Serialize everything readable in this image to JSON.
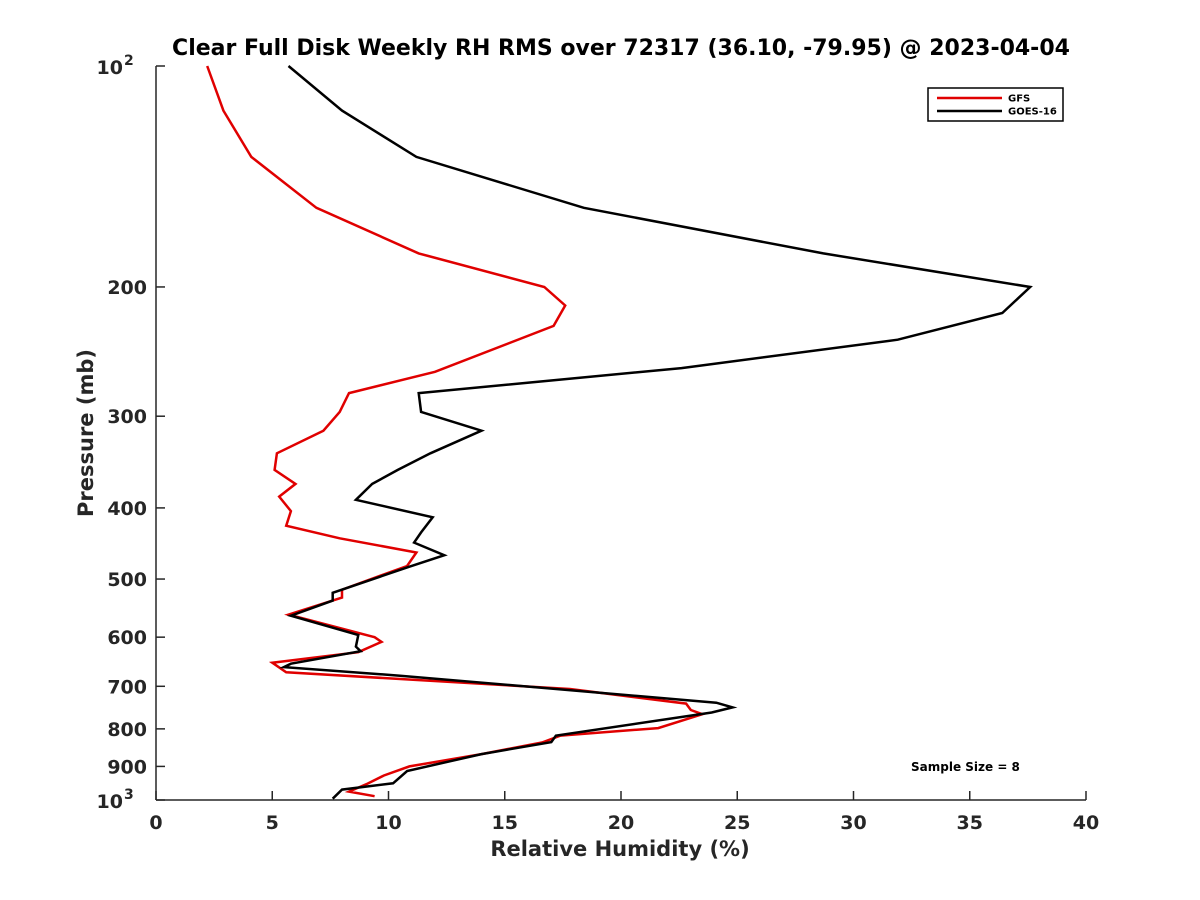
{
  "chart_data": {
    "type": "line",
    "title": "Clear Full Disk Weekly RH RMS over 72317 (36.10, -79.95) @ 2023-04-04",
    "xlabel": "Relative Humidity (%)",
    "ylabel": "Pressure (mb)",
    "xlim": [
      0,
      40
    ],
    "ylim": [
      100,
      1000
    ],
    "y_scale": "log",
    "y_reversed": true,
    "xticks": [
      "0",
      "5",
      "10",
      "15",
      "20",
      "25",
      "30",
      "35",
      "40"
    ],
    "yticks": [
      {
        "value": 100,
        "label": "10",
        "exp": "2"
      },
      {
        "value": 200,
        "label": "200"
      },
      {
        "value": 300,
        "label": "300"
      },
      {
        "value": 400,
        "label": "400"
      },
      {
        "value": 500,
        "label": "500"
      },
      {
        "value": 600,
        "label": "600"
      },
      {
        "value": 700,
        "label": "700"
      },
      {
        "value": 800,
        "label": "800"
      },
      {
        "value": 900,
        "label": "900"
      },
      {
        "value": 1000,
        "label": "10",
        "exp": "3"
      }
    ],
    "grid": false,
    "legend_position": "top-right",
    "annotation": "Sample Size = 8",
    "series": [
      {
        "name": "GFS",
        "color": "#e00000",
        "points": [
          [
            2.2,
            100
          ],
          [
            2.9,
            115
          ],
          [
            4.1,
            133
          ],
          [
            6.9,
            156
          ],
          [
            11.3,
            180
          ],
          [
            16.7,
            200
          ],
          [
            17.6,
            212
          ],
          [
            17.1,
            226
          ],
          [
            12.0,
            261
          ],
          [
            8.3,
            279
          ],
          [
            7.9,
            296
          ],
          [
            7.2,
            314
          ],
          [
            5.2,
            337
          ],
          [
            5.1,
            355
          ],
          [
            6.0,
            371
          ],
          [
            5.3,
            386
          ],
          [
            5.8,
            404
          ],
          [
            5.6,
            423
          ],
          [
            7.9,
            440
          ],
          [
            11.2,
            460
          ],
          [
            10.8,
            480
          ],
          [
            8.0,
            517
          ],
          [
            8.0,
            530
          ],
          [
            5.7,
            559
          ],
          [
            9.4,
            600
          ],
          [
            9.7,
            609
          ],
          [
            8.7,
            629
          ],
          [
            5.0,
            650
          ],
          [
            5.6,
            670
          ],
          [
            17.8,
            706
          ],
          [
            22.8,
            739
          ],
          [
            23.0,
            754
          ],
          [
            23.5,
            764
          ],
          [
            21.6,
            798
          ],
          [
            17.4,
            817
          ],
          [
            16.6,
            835
          ],
          [
            14.0,
            866
          ],
          [
            10.9,
            900
          ],
          [
            9.8,
            926
          ],
          [
            9.1,
            950
          ],
          [
            8.3,
            974
          ],
          [
            9.4,
            988
          ]
        ]
      },
      {
        "name": "GOES-16",
        "color": "#000000",
        "points": [
          [
            5.7,
            100
          ],
          [
            8.0,
            115
          ],
          [
            11.2,
            133
          ],
          [
            18.4,
            156
          ],
          [
            28.7,
            180
          ],
          [
            37.6,
            200
          ],
          [
            36.4,
            217
          ],
          [
            31.9,
            236
          ],
          [
            22.6,
            258
          ],
          [
            11.3,
            279
          ],
          [
            11.4,
            296
          ],
          [
            14.0,
            314
          ],
          [
            11.8,
            337
          ],
          [
            10.4,
            355
          ],
          [
            9.3,
            371
          ],
          [
            8.6,
            390
          ],
          [
            11.9,
            412
          ],
          [
            11.4,
            432
          ],
          [
            11.1,
            446
          ],
          [
            12.4,
            464
          ],
          [
            10.9,
            481
          ],
          [
            7.6,
            522
          ],
          [
            7.6,
            535
          ],
          [
            5.8,
            561
          ],
          [
            8.7,
            596
          ],
          [
            8.6,
            618
          ],
          [
            8.8,
            627
          ],
          [
            5.8,
            652
          ],
          [
            5.5,
            659
          ],
          [
            10.5,
            677
          ],
          [
            24.1,
            737
          ],
          [
            24.8,
            748
          ],
          [
            23.9,
            760
          ],
          [
            17.2,
            817
          ],
          [
            17.0,
            834
          ],
          [
            14.0,
            866
          ],
          [
            10.8,
            913
          ],
          [
            10.2,
            949
          ],
          [
            8.0,
            968
          ],
          [
            7.6,
            996
          ]
        ]
      }
    ]
  }
}
